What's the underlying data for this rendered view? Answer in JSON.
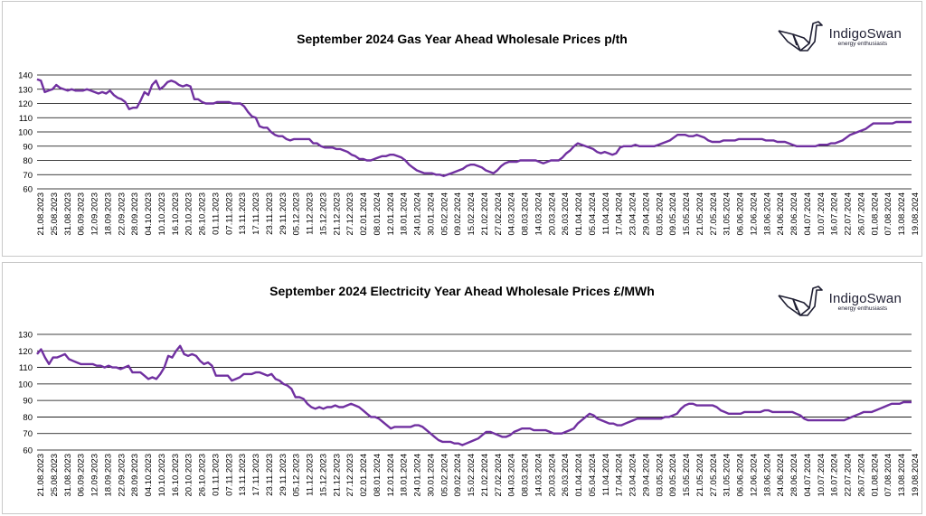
{
  "brand": {
    "name": "IndigoSwan",
    "tagline": "energy enthusiasts"
  },
  "colors": {
    "series": "#7030a0",
    "grid": "#000000"
  },
  "chart_data": [
    {
      "type": "line",
      "title": "September 2024 Gas Year Ahead Wholesale Prices p/th",
      "xlabel": "",
      "ylabel": "",
      "ylim": [
        60,
        140
      ],
      "yticks": [
        60,
        70,
        80,
        90,
        100,
        110,
        120,
        130,
        140
      ],
      "grid": "horizontal",
      "x_tick_labels": [
        "21.08.2023",
        "25.08.2023",
        "31.08.2023",
        "06.09.2023",
        "12.09.2023",
        "18.09.2023",
        "22.09.2023",
        "28.09.2023",
        "04.10.2023",
        "10.10.2023",
        "16.10.2023",
        "20.10.2023",
        "26.10.2023",
        "01.11.2023",
        "07.11.2023",
        "13.11.2023",
        "17.11.2023",
        "23.11.2023",
        "29.11.2023",
        "05.12.2023",
        "11.12.2023",
        "15.12.2023",
        "21.12.2023",
        "27.12.2023",
        "02.01.2024",
        "08.01.2024",
        "12.01.2024",
        "18.01.2024",
        "24.01.2024",
        "30.01.2024",
        "05.02.2024",
        "09.02.2024",
        "15.02.2024",
        "21.02.2024",
        "27.02.2024",
        "04.03.2024",
        "08.03.2024",
        "14.03.2024",
        "20.03.2024",
        "26.03.2024",
        "01.04.2024",
        "05.04.2024",
        "11.04.2024",
        "17.04.2024",
        "23.04.2024",
        "29.04.2024",
        "03.05.2024",
        "09.05.2024",
        "15.05.2024",
        "21.05.2024",
        "27.05.2024",
        "31.05.2024",
        "06.06.2024",
        "12.06.2024",
        "18.06.2024",
        "24.06.2024",
        "28.06.2024",
        "04.07.2024",
        "10.07.2024",
        "16.07.2024",
        "22.07.2024",
        "26.07.2024",
        "01.08.2024",
        "07.08.2024",
        "13.08.2024",
        "19.08.2024"
      ],
      "series": [
        {
          "values": [
            137,
            136,
            128,
            129,
            130,
            133,
            131,
            130,
            129,
            130,
            129,
            129,
            129,
            130,
            129,
            128,
            127,
            128,
            127,
            129,
            126,
            124,
            123,
            121,
            116,
            117,
            117,
            122,
            128,
            126,
            133,
            136,
            130,
            132,
            135,
            136,
            135,
            133,
            132,
            133,
            132,
            123,
            123,
            121,
            120,
            120,
            120,
            121,
            121,
            121,
            121,
            120,
            120,
            120,
            118,
            114,
            111,
            110,
            104,
            103,
            103,
            100,
            98,
            97,
            97,
            95,
            94,
            95,
            95,
            95,
            95,
            95,
            92,
            92,
            90,
            89,
            89,
            89,
            88,
            88,
            87,
            86,
            84,
            83,
            81,
            81,
            80,
            80,
            81,
            82,
            83,
            83,
            84,
            84,
            83,
            82,
            80,
            77,
            75,
            73,
            72,
            71,
            71,
            71,
            70,
            70,
            69,
            70,
            71,
            72,
            73,
            74,
            76,
            77,
            77,
            76,
            75,
            73,
            72,
            71,
            73,
            76,
            78,
            79,
            79,
            79,
            80,
            80,
            80,
            80,
            80,
            79,
            78,
            79,
            80,
            80,
            80,
            82,
            85,
            87,
            90,
            92,
            91,
            90,
            89,
            88,
            86,
            85,
            86,
            85,
            84,
            85,
            89,
            90,
            90,
            90,
            91,
            90,
            90,
            90,
            90,
            90,
            91,
            92,
            93,
            94,
            96,
            98,
            98,
            98,
            97,
            97,
            98,
            97,
            96,
            94,
            93,
            93,
            93,
            94,
            94,
            94,
            94,
            95,
            95,
            95,
            95,
            95,
            95,
            95,
            94,
            94,
            94,
            93,
            93,
            93,
            92,
            91,
            90,
            90,
            90,
            90,
            90,
            90,
            91,
            91,
            91,
            92,
            92,
            93,
            94,
            96,
            98,
            99,
            100,
            101,
            102,
            104,
            106,
            106,
            106,
            106,
            106,
            106,
            107,
            107,
            107,
            107,
            107
          ]
        }
      ]
    },
    {
      "type": "line",
      "title": "September 2024 Electricity Year Ahead Wholesale Prices £/MWh",
      "xlabel": "",
      "ylabel": "",
      "ylim": [
        60,
        130
      ],
      "yticks": [
        60,
        70,
        80,
        90,
        100,
        110,
        120,
        130
      ],
      "grid": "horizontal",
      "x_tick_labels": [
        "21.08.2023",
        "25.08.2023",
        "31.08.2023",
        "06.09.2023",
        "12.09.2023",
        "18.09.2023",
        "22.09.2023",
        "28.09.2023",
        "04.10.2023",
        "10.10.2023",
        "16.10.2023",
        "20.10.2023",
        "26.10.2023",
        "01.11.2023",
        "07.11.2023",
        "13.11.2023",
        "17.11.2023",
        "23.11.2023",
        "29.11.2023",
        "05.12.2023",
        "11.12.2023",
        "15.12.2023",
        "21.12.2023",
        "27.12.2023",
        "02.01.2024",
        "08.01.2024",
        "12.01.2024",
        "18.01.2024",
        "24.01.2024",
        "30.01.2024",
        "05.02.2024",
        "09.02.2024",
        "15.02.2024",
        "21.02.2024",
        "27.02.2024",
        "04.03.2024",
        "08.03.2024",
        "14.03.2024",
        "20.03.2024",
        "26.03.2024",
        "01.04.2024",
        "05.04.2024",
        "11.04.2024",
        "17.04.2024",
        "23.04.2024",
        "29.04.2024",
        "03.05.2024",
        "09.05.2024",
        "15.05.2024",
        "21.05.2024",
        "27.05.2024",
        "31.05.2024",
        "06.06.2024",
        "12.06.2024",
        "18.06.2024",
        "24.06.2024",
        "28.06.2024",
        "04.07.2024",
        "10.07.2024",
        "16.07.2024",
        "22.07.2024",
        "26.07.2024",
        "01.08.2024",
        "07.08.2024",
        "13.08.2024",
        "19.08.2024"
      ],
      "series": [
        {
          "values": [
            118,
            121,
            116,
            112,
            116,
            116,
            117,
            118,
            115,
            114,
            113,
            112,
            112,
            112,
            112,
            111,
            111,
            110,
            111,
            110,
            110,
            109,
            110,
            111,
            107,
            107,
            107,
            105,
            103,
            104,
            103,
            106,
            110,
            117,
            116,
            120,
            123,
            118,
            117,
            118,
            117,
            114,
            112,
            113,
            111,
            105,
            105,
            105,
            105,
            102,
            103,
            104,
            106,
            106,
            106,
            107,
            107,
            106,
            105,
            106,
            103,
            102,
            100,
            99,
            97,
            92,
            92,
            91,
            88,
            86,
            85,
            86,
            85,
            86,
            86,
            87,
            86,
            86,
            87,
            88,
            87,
            86,
            84,
            82,
            80,
            80,
            79,
            77,
            75,
            73,
            74,
            74,
            74,
            74,
            74,
            75,
            75,
            74,
            72,
            70,
            68,
            66,
            65,
            65,
            65,
            64,
            64,
            63,
            64,
            65,
            66,
            67,
            69,
            71,
            71,
            70,
            69,
            68,
            68,
            69,
            71,
            72,
            73,
            73,
            73,
            72,
            72,
            72,
            72,
            71,
            70,
            70,
            70,
            71,
            72,
            73,
            76,
            78,
            80,
            82,
            81,
            79,
            78,
            77,
            76,
            76,
            75,
            75,
            76,
            77,
            78,
            79,
            79,
            79,
            79,
            79,
            79,
            79,
            80,
            80,
            81,
            82,
            85,
            87,
            88,
            88,
            87,
            87,
            87,
            87,
            87,
            86,
            84,
            83,
            82,
            82,
            82,
            82,
            83,
            83,
            83,
            83,
            83,
            84,
            84,
            83,
            83,
            83,
            83,
            83,
            83,
            82,
            81,
            79,
            78,
            78,
            78,
            78,
            78,
            78,
            78,
            78,
            78,
            78,
            79,
            80,
            81,
            82,
            83,
            83,
            83,
            84,
            85,
            86,
            87,
            88,
            88,
            88,
            89,
            89,
            89
          ]
        }
      ]
    }
  ]
}
